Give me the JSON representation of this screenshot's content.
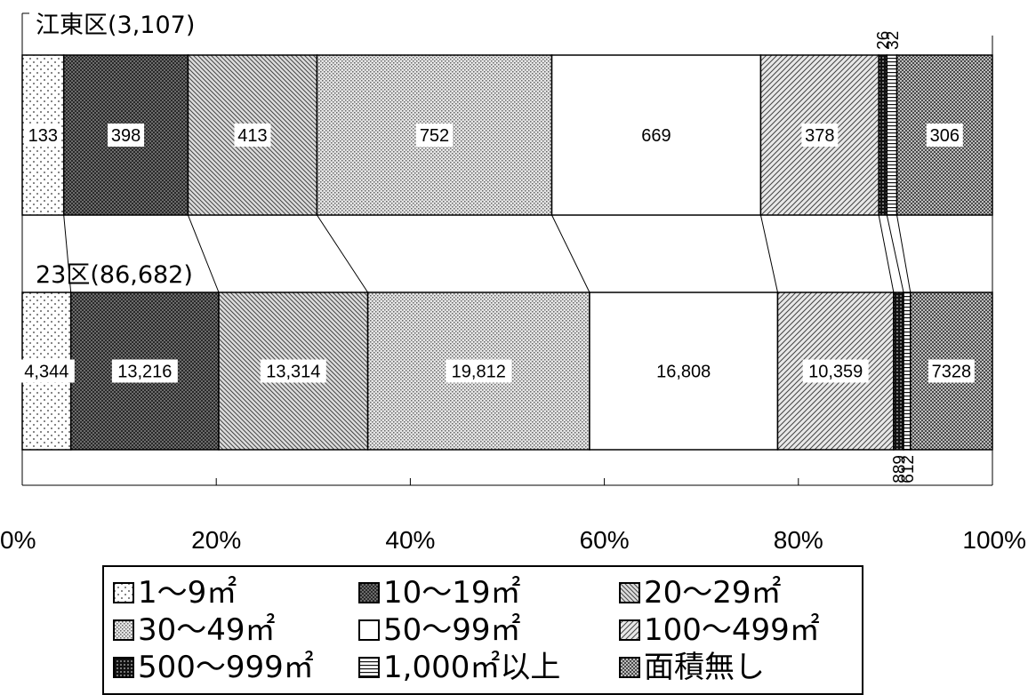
{
  "chart_data": {
    "type": "bar",
    "orientation": "horizontal",
    "stacking": "percent",
    "categories": [
      "1〜9㎡",
      "10〜19㎡",
      "20〜29㎡",
      "30〜49㎡",
      "50〜99㎡",
      "100〜499㎡",
      "500〜999㎡",
      "1,000㎡以上",
      "面積無し"
    ],
    "groups": [
      {
        "label": "江東区(3,107)",
        "values": [
          133,
          398,
          413,
          752,
          669,
          378,
          26,
          32,
          306
        ],
        "value_labels": [
          "133",
          "398",
          "413",
          "752",
          "669",
          "378",
          "26",
          "32",
          "306"
        ]
      },
      {
        "label": "23区(86,682)",
        "values": [
          4344,
          13216,
          13314,
          19812,
          16808,
          10359,
          889,
          612,
          7328
        ],
        "value_labels": [
          "4,344",
          "13,216",
          "13,314",
          "19,812",
          "16,808",
          "10,359",
          "889",
          "612",
          "7328"
        ]
      }
    ],
    "x_ticks": [
      "0%",
      "20%",
      "40%",
      "60%",
      "80%",
      "100%"
    ],
    "xlim": [
      0,
      100
    ],
    "legend_position": "bottom",
    "grid": false,
    "fills": [
      "dots",
      "dense-dark",
      "diagonal",
      "fine-dots",
      "white",
      "diagonal-hatch",
      "dark-check",
      "horizontal-lines",
      "check"
    ]
  },
  "legend": {
    "items": [
      {
        "label": "1〜9㎡",
        "icon": "dots-swatch"
      },
      {
        "label": "10〜19㎡",
        "icon": "dense-dark-swatch"
      },
      {
        "label": "20〜29㎡",
        "icon": "diagonal-swatch"
      },
      {
        "label": "30〜49㎡",
        "icon": "fine-dots-swatch"
      },
      {
        "label": "50〜99㎡",
        "icon": "white-swatch"
      },
      {
        "label": "100〜499㎡",
        "icon": "diagonal-hatch-swatch"
      },
      {
        "label": "500〜999㎡",
        "icon": "dark-check-swatch"
      },
      {
        "label": "1,000㎡以上",
        "icon": "horizontal-lines-swatch"
      },
      {
        "label": "面積無し",
        "icon": "check-swatch"
      }
    ]
  }
}
